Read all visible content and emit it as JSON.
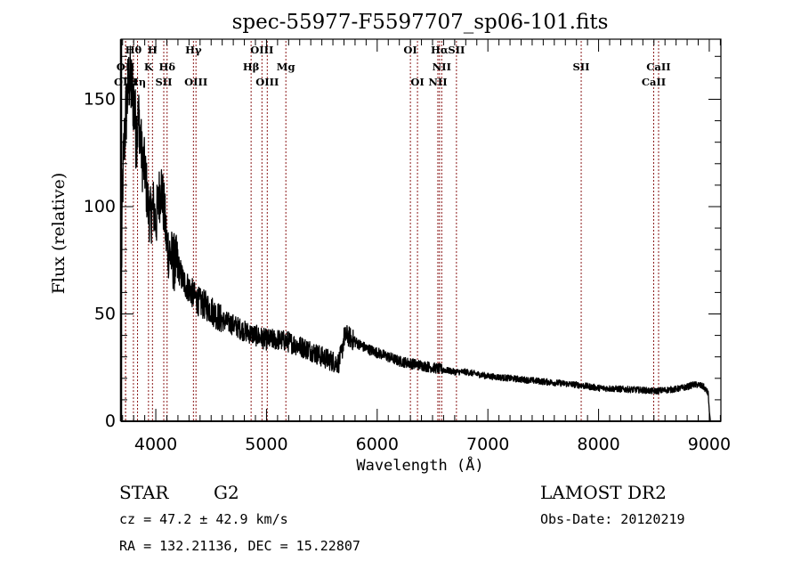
{
  "chart_data": {
    "type": "line",
    "title": "spec-55977-F5597707_sp06-101.fits",
    "xlabel": "Wavelength (Å)",
    "ylabel": "Flux (relative)",
    "xlim": [
      3686,
      9105
    ],
    "ylim": [
      0,
      178
    ],
    "xticks": [
      4000,
      5000,
      6000,
      7000,
      8000,
      9000
    ],
    "xtick_labels": [
      "4000",
      "5000",
      "6000",
      "7000",
      "8000",
      "9000"
    ],
    "x_minor_step": 100,
    "yticks": [
      0,
      50,
      100,
      150
    ],
    "ytick_labels": [
      "0",
      "50",
      "100",
      "150"
    ],
    "y_minor_step": 10,
    "grid": false,
    "legend": "none",
    "series": [
      {
        "name": "spectrum",
        "color": "#000000",
        "x": [
          3690,
          3700,
          3720,
          3740,
          3760,
          3780,
          3800,
          3820,
          3850,
          3880,
          3900,
          3930,
          3950,
          3980,
          4000,
          4030,
          4050,
          4080,
          4100,
          4150,
          4200,
          4250,
          4300,
          4350,
          4400,
          4450,
          4500,
          4600,
          4700,
          4800,
          4900,
          5000,
          5100,
          5200,
          5300,
          5400,
          5500,
          5600,
          5650,
          5680,
          5700,
          5730,
          5800,
          5900,
          6000,
          6100,
          6200,
          6300,
          6400,
          6500,
          6600,
          6700,
          6800,
          6900,
          7000,
          7200,
          7400,
          7600,
          7800,
          8000,
          8200,
          8400,
          8500,
          8600,
          8700,
          8800,
          8850,
          8900,
          8950,
          8990,
          9000,
          9010
        ],
        "y": [
          70,
          110,
          135,
          150,
          160,
          155,
          150,
          135,
          140,
          120,
          118,
          100,
          95,
          100,
          92,
          105,
          110,
          95,
          82,
          75,
          72,
          65,
          62,
          58,
          55,
          54,
          52,
          47,
          45,
          42,
          40,
          38,
          38,
          37,
          35,
          33,
          30,
          28,
          27,
          32,
          39,
          40,
          37,
          34,
          32,
          30,
          28,
          27,
          26,
          25,
          24,
          23,
          23,
          22,
          21,
          20,
          19,
          18,
          17,
          15.5,
          15,
          14.5,
          14,
          14.5,
          15,
          16,
          17,
          17,
          16,
          13,
          5,
          0
        ],
        "noise_amplitude_by_region": [
          {
            "from": 3686,
            "to": 3850,
            "amp": 18
          },
          {
            "from": 3850,
            "to": 4200,
            "amp": 14
          },
          {
            "from": 4200,
            "to": 4600,
            "amp": 7
          },
          {
            "from": 4600,
            "to": 5800,
            "amp": 5
          },
          {
            "from": 5800,
            "to": 6600,
            "amp": 2.5
          },
          {
            "from": 6600,
            "to": 9105,
            "amp": 1.5
          }
        ]
      }
    ],
    "emission_lines": [
      {
        "label": "Hθ",
        "wavelength": 3798,
        "row": 0
      },
      {
        "label": "H",
        "wavelength": 3970,
        "row": 0
      },
      {
        "label": "Hγ",
        "wavelength": 4340,
        "row": 0
      },
      {
        "label": "OIII",
        "wavelength": 4959,
        "row": 0
      },
      {
        "label": "OI",
        "wavelength": 6300,
        "row": 0
      },
      {
        "label": "Hα",
        "wavelength": 6563,
        "row": 0
      },
      {
        "label": "SII",
        "wavelength": 6716,
        "row": 0
      },
      {
        "label": "OII",
        "wavelength": 3727,
        "row": 1
      },
      {
        "label": "K",
        "wavelength": 3934,
        "row": 1
      },
      {
        "label": "Hδ",
        "wavelength": 4102,
        "row": 1
      },
      {
        "label": "Hβ",
        "wavelength": 4861,
        "row": 1
      },
      {
        "label": "Mg",
        "wavelength": 5175,
        "row": 1
      },
      {
        "label": "NII",
        "wavelength": 6583,
        "row": 1
      },
      {
        "label": "SII",
        "wavelength": 7843,
        "row": 1
      },
      {
        "label": "CaII",
        "wavelength": 8542,
        "row": 1
      },
      {
        "label": "OIII",
        "wavelength": 3727,
        "row": 2
      },
      {
        "label": "Hη",
        "wavelength": 3835,
        "row": 2
      },
      {
        "label": "SII",
        "wavelength": 4072,
        "row": 2
      },
      {
        "label": "OIII",
        "wavelength": 4363,
        "row": 2
      },
      {
        "label": "OIII",
        "wavelength": 5007,
        "row": 2
      },
      {
        "label": "OI",
        "wavelength": 6364,
        "row": 2
      },
      {
        "label": "NII",
        "wavelength": 6548,
        "row": 2
      },
      {
        "label": "CaII",
        "wavelength": 8498,
        "row": 2
      }
    ],
    "line_marker_color": "#8b1a1a"
  },
  "info": {
    "object_class": "STAR",
    "subclass": "G2",
    "redshift_text": "cz = 47.2 ± 42.9 km/s",
    "coords_text": "RA = 132.21136, DEC =  15.22807",
    "survey": "LAMOST DR2",
    "obs_date_text": "Obs-Date: 20120219"
  }
}
